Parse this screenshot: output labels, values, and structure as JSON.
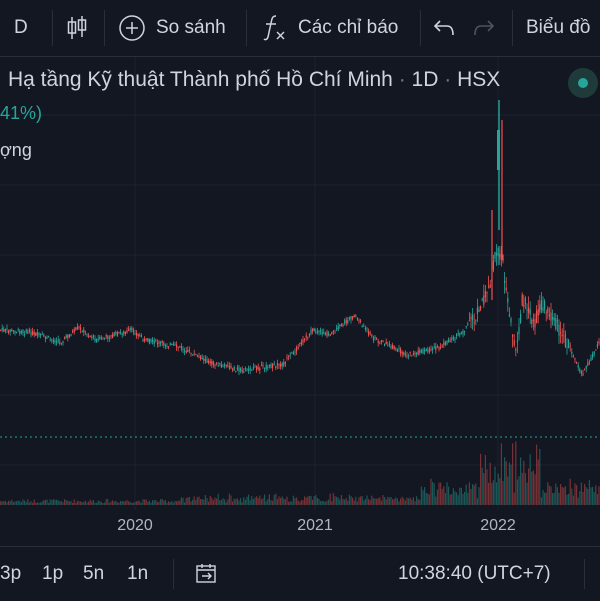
{
  "toolbar": {
    "interval_label": "D",
    "compare_label": "So sánh",
    "indicators_label": "Các chỉ báo",
    "chart_label": "Biểu đồ"
  },
  "legend": {
    "title": "Hạ tầng Kỹ thuật Thành phố Hồ Chí Minh",
    "interval": "1D",
    "exchange": "HSX",
    "change_pct": "41%)",
    "volume_label": "ợng"
  },
  "x_axis": {
    "ticks": [
      "2020",
      "2021",
      "2022"
    ]
  },
  "bottom": {
    "ranges": [
      "3p",
      "1p",
      "5n",
      "1n"
    ],
    "clock": "10:38:40 (UTC+7)"
  },
  "colors": {
    "up": "#26a69a",
    "down": "#ef5350",
    "bg": "#131722"
  },
  "chart_data": {
    "type": "candlestick",
    "x_ticks": [
      "2020",
      "2021",
      "2022"
    ],
    "series_shape": [
      [
        0,
        0.3
      ],
      [
        0.05,
        0.31
      ],
      [
        0.1,
        0.35
      ],
      [
        0.13,
        0.29
      ],
      [
        0.16,
        0.34
      ],
      [
        0.22,
        0.3
      ],
      [
        0.24,
        0.34
      ],
      [
        0.3,
        0.37
      ],
      [
        0.35,
        0.43
      ],
      [
        0.4,
        0.46
      ],
      [
        0.47,
        0.44
      ],
      [
        0.52,
        0.3
      ],
      [
        0.55,
        0.32
      ],
      [
        0.59,
        0.24
      ],
      [
        0.62,
        0.33
      ],
      [
        0.68,
        0.4
      ],
      [
        0.73,
        0.37
      ],
      [
        0.77,
        0.31
      ],
      [
        0.8,
        0.22
      ],
      [
        0.82,
        0.1
      ],
      [
        0.83,
        -0.25
      ],
      [
        0.84,
        0.1
      ],
      [
        0.86,
        0.4
      ],
      [
        0.87,
        0.17
      ],
      [
        0.89,
        0.28
      ],
      [
        0.9,
        0.19
      ],
      [
        0.92,
        0.25
      ],
      [
        0.95,
        0.38
      ],
      [
        0.97,
        0.48
      ],
      [
        1.0,
        0.34
      ]
    ]
  }
}
